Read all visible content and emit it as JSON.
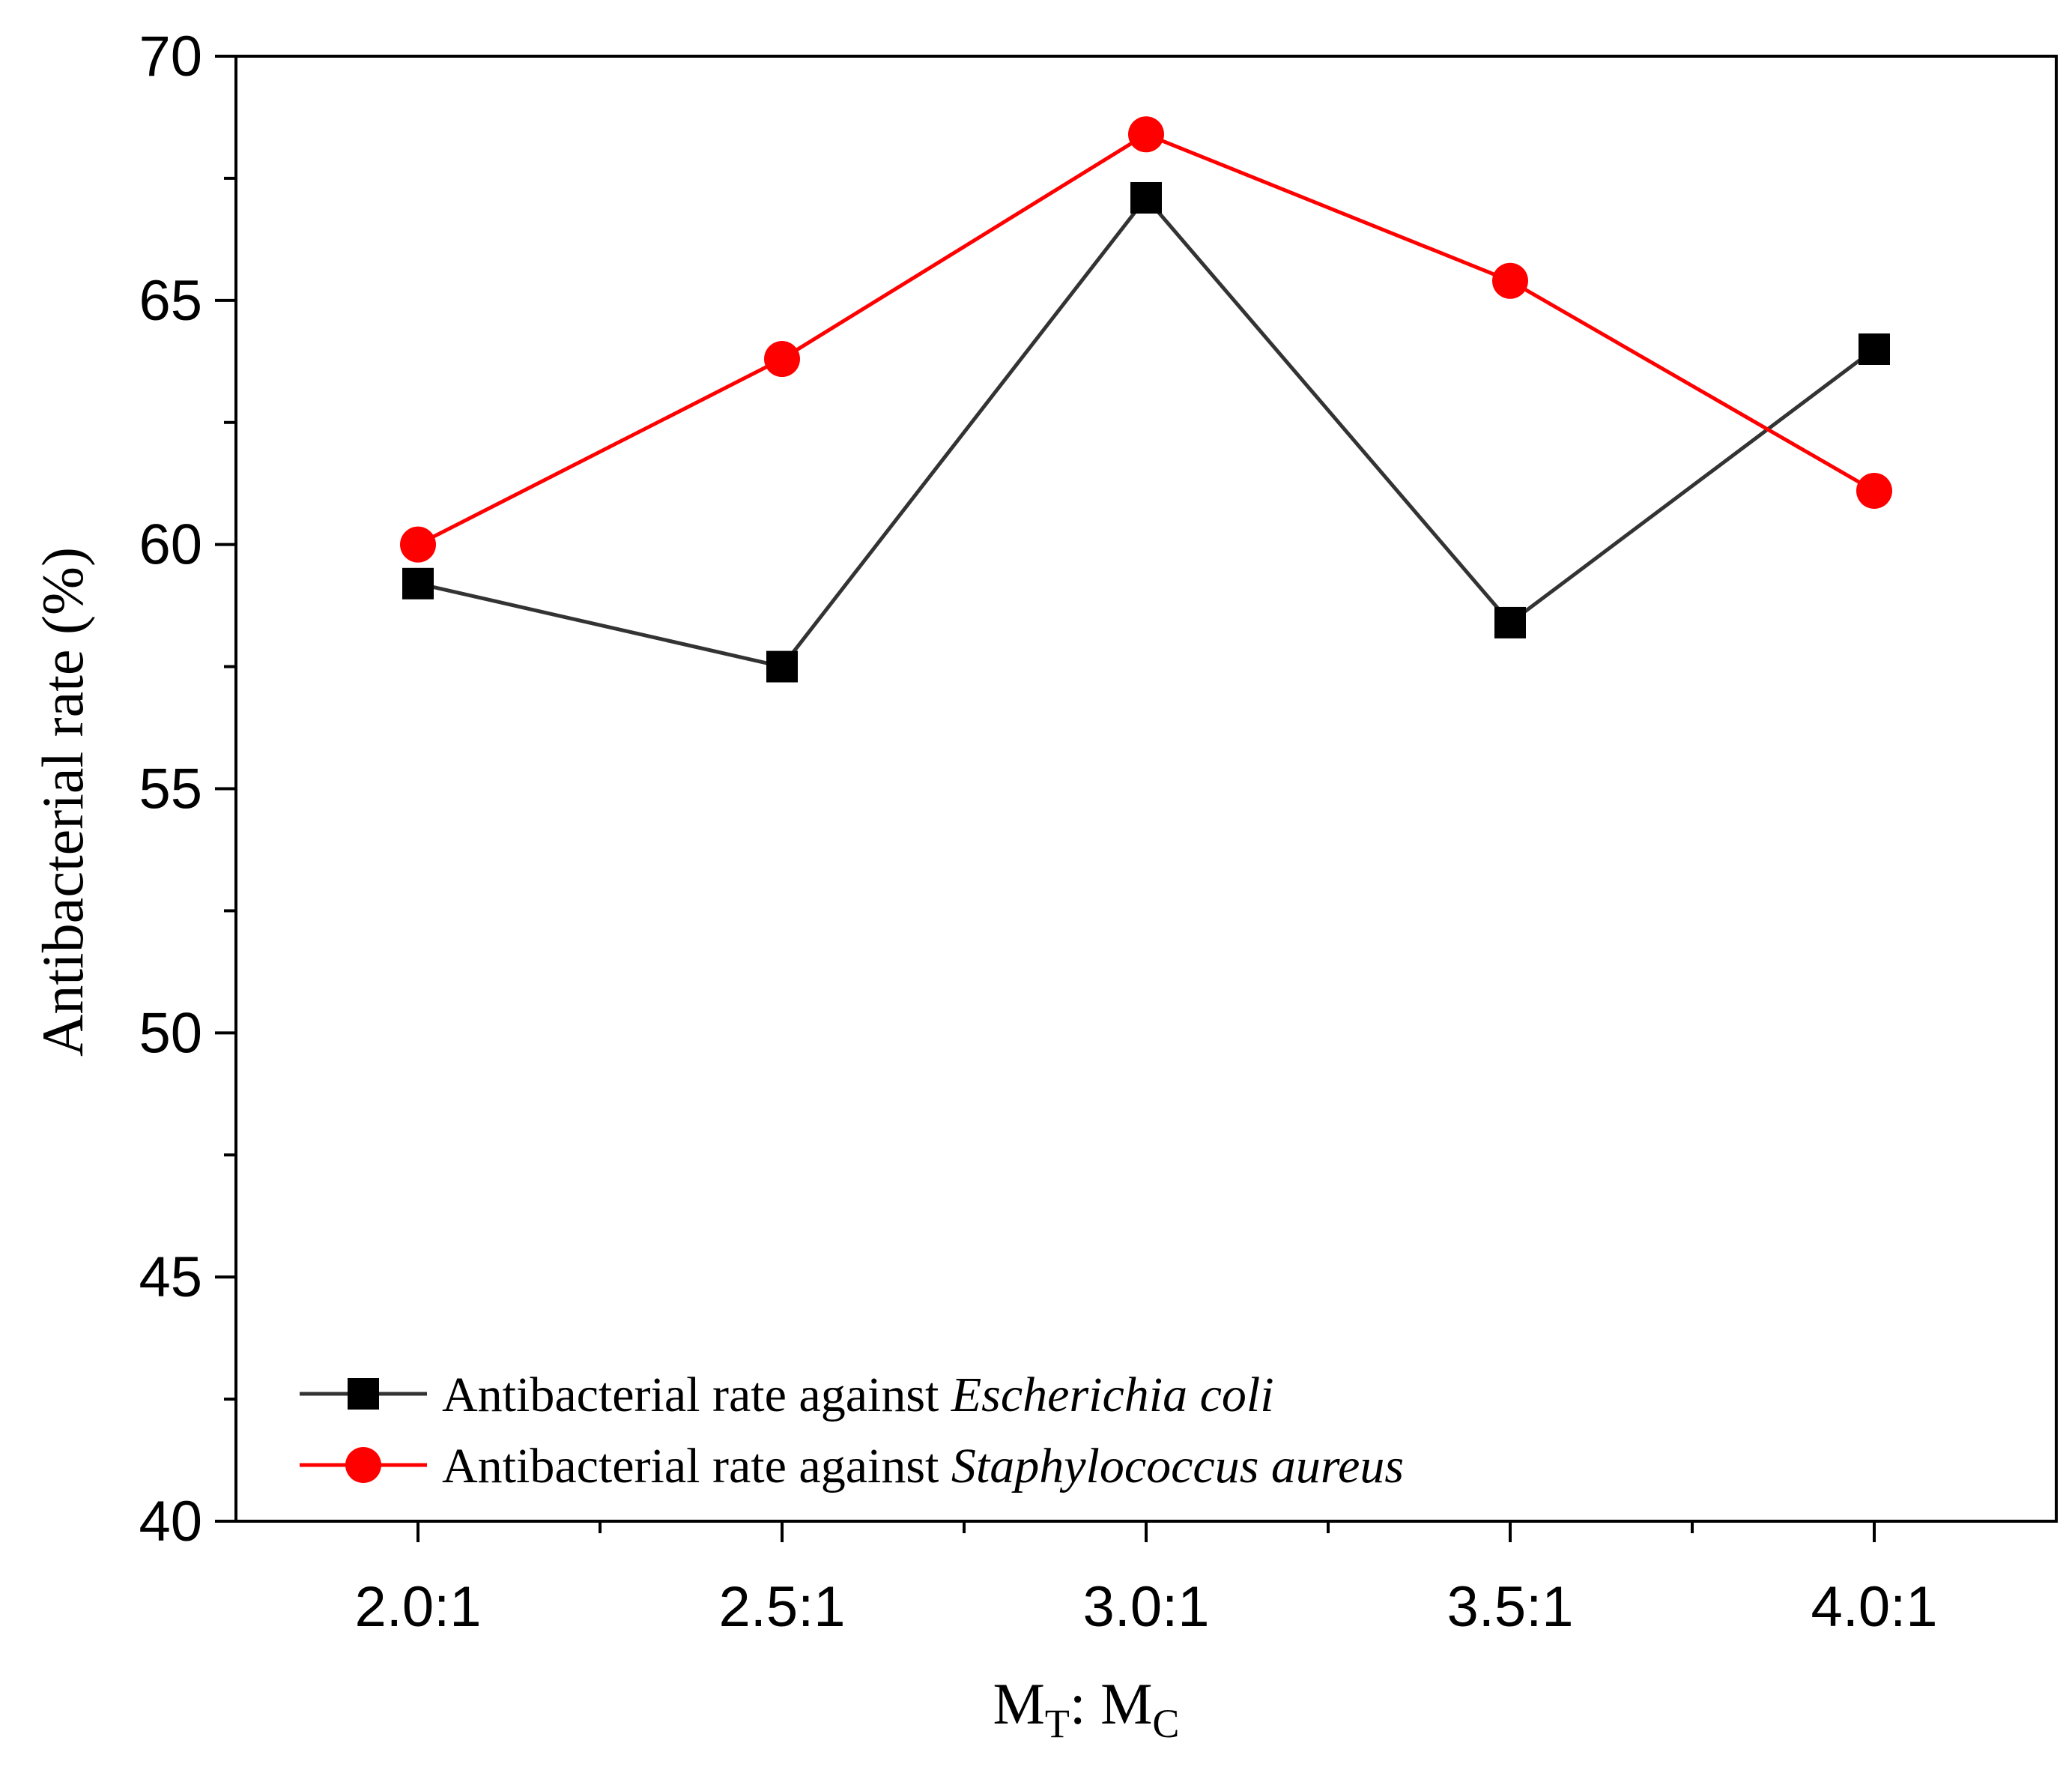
{
  "chart_data": {
    "type": "line",
    "categories": [
      "2.0:1",
      "2.5:1",
      "3.0:1",
      "3.5:1",
      "4.0:1"
    ],
    "series": [
      {
        "name": "Antibacterial rate against Escherichia coli",
        "legend_prefix": "Antibacterial rate against ",
        "legend_species": "Escherichia coli",
        "color": "#000000",
        "line_color": "#333333",
        "marker": "square",
        "values": [
          59.2,
          57.5,
          67.1,
          58.4,
          64.0
        ]
      },
      {
        "name": "Antibacterial rate against Staphylococcus aureus",
        "legend_prefix": "Antibacterial rate against ",
        "legend_species": "Staphylococcus aureus",
        "color": "#ff0000",
        "line_color": "#ff0000",
        "marker": "circle",
        "values": [
          60.0,
          63.8,
          68.4,
          65.4,
          61.1
        ]
      }
    ],
    "ylabel": "Antibacterial rate (%)",
    "xlabel": {
      "main1": "M",
      "sub1": "T",
      "sep": ": ",
      "main2": "M",
      "sub2": "C"
    },
    "ylim": [
      40,
      70
    ],
    "yticks": [
      40,
      45,
      50,
      55,
      60,
      65,
      70
    ],
    "grid": false,
    "legend_position": "bottom-left"
  }
}
